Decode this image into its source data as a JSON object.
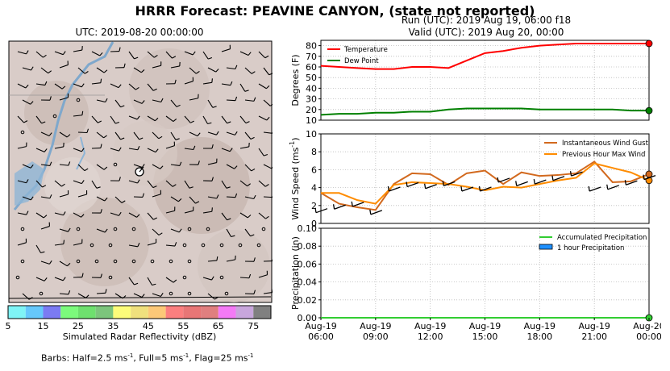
{
  "suptitle": "HRRR Forecast: PEAVINE CANYON, (state not reported)",
  "map": {
    "title": "UTC: 2019-08-20 00:00:00",
    "colorbar_label": "Simulated Radar Reflectivity (dBZ)",
    "colorbar_ticks": [
      "5",
      "15",
      "25",
      "35",
      "45",
      "55",
      "65",
      "75"
    ],
    "colorbar_colors": [
      "#7ff4f6",
      "#66c8fb",
      "#7b7bf2",
      "#7cfa7c",
      "#6ee06e",
      "#7cc57c",
      "#fcfc7a",
      "#efe07d",
      "#fcc878",
      "#fb7f7f",
      "#e87676",
      "#e07f7f",
      "#f47af6",
      "#c8a6dc",
      "#808080"
    ],
    "barbs_note_prefix": "Barbs: Half=2.5 ms",
    "barbs_note_mid1": ", Full=5 ms",
    "barbs_note_mid2": ", Flag=25 ms",
    "superscript": "-1"
  },
  "run_label": "Run (UTC): 2019 Aug 19, 06:00 f18",
  "valid_label": "Valid (UTC): 2019 Aug 20, 00:00",
  "colors": {
    "temperature": "#ff0000",
    "dewpoint": "#008000",
    "gust": "#d2691e",
    "maxwind": "#ff8c00",
    "precip_accum": "#32cd32",
    "precip_hour": "#1e90ff"
  },
  "chart_data": [
    {
      "type": "line",
      "ylabel": "Degrees (F)",
      "ylim": [
        10,
        85
      ],
      "yticks": [
        "10",
        "20",
        "30",
        "40",
        "50",
        "60",
        "70",
        "80"
      ],
      "grid": true,
      "legend": "top-left",
      "x": [
        "06:00",
        "07:00",
        "08:00",
        "09:00",
        "10:00",
        "11:00",
        "12:00",
        "13:00",
        "14:00",
        "15:00",
        "16:00",
        "17:00",
        "18:00",
        "19:00",
        "20:00",
        "21:00",
        "22:00",
        "23:00",
        "00:00"
      ],
      "series": [
        {
          "name": "Temperature",
          "values": [
            61,
            60,
            59,
            58,
            58,
            60,
            60,
            59,
            66,
            73,
            75,
            78,
            80,
            81,
            82,
            82,
            82,
            82,
            82
          ]
        },
        {
          "name": "Dew Point",
          "values": [
            15,
            16,
            16,
            17,
            17,
            18,
            18,
            20,
            21,
            21,
            21,
            21,
            20,
            20,
            20,
            20,
            20,
            19,
            19
          ]
        }
      ]
    },
    {
      "type": "line",
      "ylabel": "Wind Speed (ms",
      "ylabel_sup": "-1",
      "ylabel_end": ")",
      "ylim": [
        0,
        10
      ],
      "yticks": [
        "0",
        "2",
        "4",
        "6",
        "8",
        "10"
      ],
      "grid": true,
      "legend": "top-right",
      "x": [
        "06:00",
        "07:00",
        "08:00",
        "09:00",
        "10:00",
        "11:00",
        "12:00",
        "13:00",
        "14:00",
        "15:00",
        "16:00",
        "17:00",
        "18:00",
        "19:00",
        "20:00",
        "21:00",
        "22:00",
        "23:00",
        "00:00"
      ],
      "series": [
        {
          "name": "Instantaneous Wind Gust",
          "values": [
            3.4,
            2.2,
            1.8,
            1.5,
            4.4,
            5.6,
            5.5,
            4.3,
            5.6,
            5.9,
            4.4,
            5.7,
            5.3,
            5.4,
            5.6,
            6.9,
            4.6,
            4.7,
            5.5
          ]
        },
        {
          "name": "Previous Hour Max Wind",
          "values": [
            3.4,
            3.4,
            2.6,
            2.2,
            4.3,
            4.6,
            4.5,
            4.4,
            4.1,
            3.7,
            4.1,
            4.0,
            4.4,
            4.8,
            5.1,
            6.7,
            6.2,
            5.7,
            4.8
          ]
        }
      ]
    },
    {
      "type": "bar",
      "ylabel": "Precipitation (in)",
      "ylim": [
        0,
        0.1
      ],
      "yticks": [
        "0.00",
        "0.02",
        "0.04",
        "0.06",
        "0.08",
        "0.10"
      ],
      "grid": true,
      "legend": "top-right",
      "x_tick_labels": [
        [
          "Aug-19",
          "06:00"
        ],
        [
          "Aug-19",
          "09:00"
        ],
        [
          "Aug-19",
          "12:00"
        ],
        [
          "Aug-19",
          "15:00"
        ],
        [
          "Aug-19",
          "18:00"
        ],
        [
          "Aug-19",
          "21:00"
        ],
        [
          "Aug-20",
          "00:00"
        ]
      ],
      "x": [
        "06:00",
        "07:00",
        "08:00",
        "09:00",
        "10:00",
        "11:00",
        "12:00",
        "13:00",
        "14:00",
        "15:00",
        "16:00",
        "17:00",
        "18:00",
        "19:00",
        "20:00",
        "21:00",
        "22:00",
        "23:00",
        "00:00"
      ],
      "series": [
        {
          "name": "Accumulated Precipitation",
          "values": [
            0,
            0,
            0,
            0,
            0,
            0,
            0,
            0,
            0,
            0,
            0,
            0,
            0,
            0,
            0,
            0,
            0,
            0,
            0
          ]
        },
        {
          "name": "1 hour Precipitation",
          "values": [
            0,
            0,
            0,
            0,
            0,
            0,
            0,
            0,
            0,
            0,
            0,
            0,
            0,
            0,
            0,
            0,
            0,
            0,
            0
          ]
        }
      ]
    }
  ]
}
